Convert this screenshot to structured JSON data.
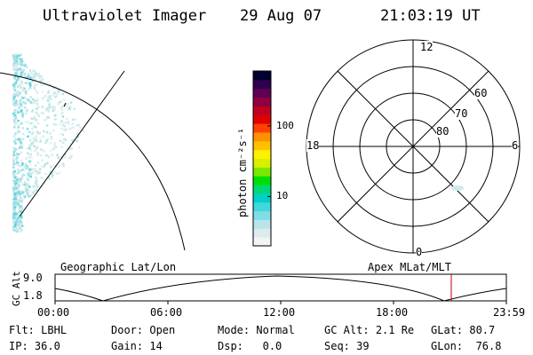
{
  "header": {
    "instrument": "Ultraviolet Imager",
    "date": "29 Aug 07",
    "time": "21:03:19 UT"
  },
  "colorbar": {
    "unit_label": "photon cm⁻²s⁻¹",
    "ticks": [
      {
        "value": 10,
        "label": "10"
      },
      {
        "value": 100,
        "label": "100"
      }
    ],
    "log_range": [
      2,
      600
    ],
    "colors": [
      "#f4f4f4",
      "#dcecee",
      "#b8e4ea",
      "#7fdde6",
      "#3fd8dc",
      "#00d0c8",
      "#00d878",
      "#00e000",
      "#7ae800",
      "#d8f000",
      "#fff000",
      "#ffc000",
      "#ff9000",
      "#ff4000",
      "#e00000",
      "#c00020",
      "#900040",
      "#600050",
      "#300050",
      "#000030"
    ]
  },
  "polar_plot": {
    "labels": {
      "top": "12",
      "bottom": "0",
      "left": "18",
      "right": "6"
    },
    "rings": [
      {
        "lat": 80,
        "label": "80"
      },
      {
        "lat": 70,
        "label": "70"
      },
      {
        "lat": 60,
        "label": "60"
      }
    ]
  },
  "track": {
    "left_label": "Geographic Lat/Lon",
    "right_label": "Apex MLat/MLT",
    "y_axis_label": "GC Alt",
    "y_ticks": [
      "9.0",
      "1.8"
    ],
    "x_ticks": [
      "00:00",
      "06:00",
      "12:00",
      "18:00",
      "23:59"
    ],
    "current_marker_color": "#c00000"
  },
  "status": {
    "row1": [
      {
        "key": "Flt:",
        "value": "LBHL"
      },
      {
        "key": "Door:",
        "value": "Open"
      },
      {
        "key": "Mode:",
        "value": "Normal"
      },
      {
        "key": "GC Alt:",
        "value": "2.1 Re"
      },
      {
        "key": "GLat:",
        "value": "80.7"
      }
    ],
    "row2": [
      {
        "key": "IP:",
        "value": "36.0"
      },
      {
        "key": "Gain:",
        "value": "14"
      },
      {
        "key": "Dsp:",
        "value": "0.0"
      },
      {
        "key": "Seq:",
        "value": "39"
      },
      {
        "key": "GLon:",
        "value": "76.8"
      }
    ]
  }
}
